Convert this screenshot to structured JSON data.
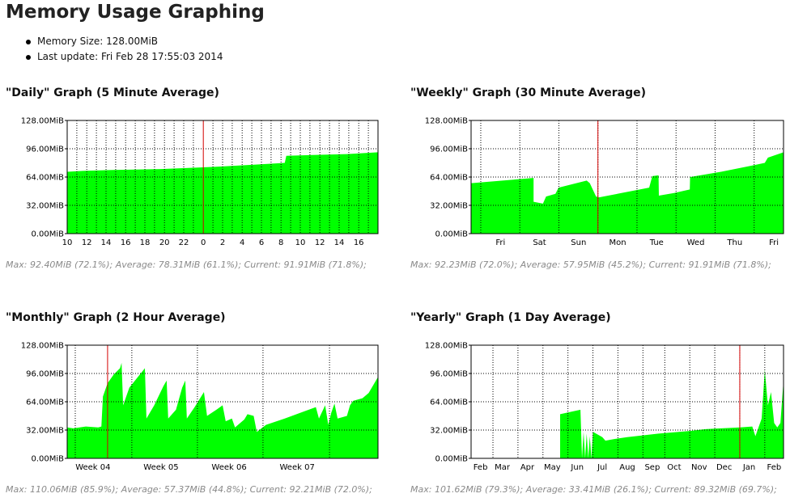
{
  "page_title": "Memory Usage Graphing",
  "info": {
    "memory_size": "Memory Size: 128.00MiB",
    "last_update": "Last update: Fri Feb 28 17:55:03 2014"
  },
  "colors": {
    "fill": "#00ff00",
    "marker": "#d40000",
    "grid": "#000000",
    "background": "#ffffff"
  },
  "chart_data": [
    {
      "type": "area",
      "title": "\"Daily\" Graph (5 Minute Average)",
      "ylim": [
        0,
        128
      ],
      "yticks": [
        "0.00MiB",
        "32.00MiB",
        "64.00MiB",
        "96.00MiB",
        "128.00MiB"
      ],
      "yvalues": [
        0,
        32,
        64,
        96,
        128
      ],
      "xlim": [
        0,
        1
      ],
      "xticks": [
        "10",
        "12",
        "14",
        "16",
        "18",
        "20",
        "22",
        "0",
        "2",
        "4",
        "6",
        "8",
        "10",
        "12",
        "14",
        "16"
      ],
      "xtick_pos": [
        0.0,
        0.063,
        0.125,
        0.188,
        0.25,
        0.313,
        0.375,
        0.438,
        0.5,
        0.563,
        0.625,
        0.688,
        0.75,
        0.813,
        0.875,
        0.938
      ],
      "grid_x": [
        0.031,
        0.063,
        0.094,
        0.125,
        0.156,
        0.188,
        0.219,
        0.25,
        0.281,
        0.313,
        0.344,
        0.375,
        0.406,
        0.469,
        0.5,
        0.531,
        0.563,
        0.594,
        0.625,
        0.656,
        0.688,
        0.719,
        0.75,
        0.781,
        0.813,
        0.844,
        0.875,
        0.906,
        0.938,
        0.969
      ],
      "marker_x": 0.438,
      "points": [
        [
          0,
          70
        ],
        [
          0.05,
          71
        ],
        [
          0.15,
          72
        ],
        [
          0.3,
          73
        ],
        [
          0.438,
          75
        ],
        [
          0.5,
          76
        ],
        [
          0.6,
          78
        ],
        [
          0.7,
          80
        ],
        [
          0.705,
          88
        ],
        [
          0.8,
          89
        ],
        [
          0.9,
          90
        ],
        [
          1.0,
          92
        ]
      ],
      "stats": "Max: 92.40MiB (72.1%); Average: 78.31MiB (61.1%); Current: 91.91MiB (71.8%);"
    },
    {
      "type": "area",
      "title": "\"Weekly\" Graph (30 Minute Average)",
      "ylim": [
        0,
        128
      ],
      "yticks": [
        "0.00MiB",
        "32.00MiB",
        "64.00MiB",
        "96.00MiB",
        "128.00MiB"
      ],
      "yvalues": [
        0,
        32,
        64,
        96,
        128
      ],
      "xlim": [
        0,
        1
      ],
      "xticks": [
        "Fri",
        "Sat",
        "Sun",
        "Mon",
        "Tue",
        "Wed",
        "Thu",
        "Fri"
      ],
      "xtick_pos": [
        0.094,
        0.219,
        0.344,
        0.469,
        0.594,
        0.719,
        0.844,
        0.969
      ],
      "grid_x": [
        0.031,
        0.156,
        0.281,
        0.406,
        0.531,
        0.656,
        0.781,
        0.906
      ],
      "marker_x": 0.406,
      "points": [
        [
          0,
          57
        ],
        [
          0.2,
          63
        ],
        [
          0.2,
          36
        ],
        [
          0.23,
          34
        ],
        [
          0.24,
          42
        ],
        [
          0.27,
          45
        ],
        [
          0.28,
          52
        ],
        [
          0.37,
          60
        ],
        [
          0.38,
          57
        ],
        [
          0.4,
          42
        ],
        [
          0.41,
          41
        ],
        [
          0.57,
          52
        ],
        [
          0.58,
          65
        ],
        [
          0.6,
          66
        ],
        [
          0.601,
          43
        ],
        [
          0.65,
          46
        ],
        [
          0.7,
          50
        ],
        [
          0.701,
          64
        ],
        [
          0.8,
          70
        ],
        [
          0.9,
          77
        ],
        [
          0.94,
          80
        ],
        [
          0.95,
          86
        ],
        [
          1.0,
          92
        ]
      ],
      "stats": "Max: 92.23MiB (72.0%); Average: 57.95MiB (45.2%); Current: 91.91MiB (71.8%);"
    },
    {
      "type": "area",
      "title": "\"Monthly\" Graph (2 Hour Average)",
      "ylim": [
        0,
        128
      ],
      "yticks": [
        "0.00MiB",
        "32.00MiB",
        "64.00MiB",
        "96.00MiB",
        "128.00MiB"
      ],
      "yvalues": [
        0,
        32,
        64,
        96,
        128
      ],
      "xlim": [
        0,
        1
      ],
      "xticks": [
        "Week 04",
        "Week 05",
        "Week 06",
        "Week 07"
      ],
      "xtick_pos": [
        0.083,
        0.302,
        0.521,
        0.74
      ],
      "grid_x": [
        0.026,
        0.208,
        0.419,
        0.63,
        0.844
      ],
      "marker_x": 0.13,
      "points": [
        [
          0,
          35
        ],
        [
          0.02,
          34
        ],
        [
          0.06,
          36
        ],
        [
          0.1,
          35
        ],
        [
          0.11,
          36
        ],
        [
          0.115,
          70
        ],
        [
          0.13,
          85
        ],
        [
          0.15,
          95
        ],
        [
          0.17,
          102
        ],
        [
          0.175,
          108
        ],
        [
          0.18,
          60
        ],
        [
          0.2,
          80
        ],
        [
          0.25,
          102
        ],
        [
          0.255,
          45
        ],
        [
          0.28,
          60
        ],
        [
          0.31,
          82
        ],
        [
          0.32,
          88
        ],
        [
          0.325,
          45
        ],
        [
          0.35,
          55
        ],
        [
          0.37,
          80
        ],
        [
          0.38,
          88
        ],
        [
          0.385,
          45
        ],
        [
          0.41,
          58
        ],
        [
          0.44,
          75
        ],
        [
          0.45,
          48
        ],
        [
          0.48,
          55
        ],
        [
          0.5,
          60
        ],
        [
          0.51,
          42
        ],
        [
          0.53,
          45
        ],
        [
          0.54,
          35
        ],
        [
          0.57,
          44
        ],
        [
          0.58,
          50
        ],
        [
          0.6,
          48
        ],
        [
          0.61,
          30
        ],
        [
          0.64,
          38
        ],
        [
          0.7,
          45
        ],
        [
          0.8,
          58
        ],
        [
          0.81,
          45
        ],
        [
          0.83,
          60
        ],
        [
          0.84,
          38
        ],
        [
          0.85,
          52
        ],
        [
          0.86,
          62
        ],
        [
          0.87,
          45
        ],
        [
          0.9,
          48
        ],
        [
          0.91,
          60
        ],
        [
          0.92,
          65
        ],
        [
          0.95,
          68
        ],
        [
          0.97,
          74
        ],
        [
          1.0,
          92
        ]
      ],
      "stats": "Max: 110.06MiB (85.9%); Average: 57.37MiB (44.8%); Current: 92.21MiB (72.0%);"
    },
    {
      "type": "area",
      "title": "\"Yearly\" Graph (1 Day Average)",
      "ylim": [
        0,
        128
      ],
      "yticks": [
        "0.00MiB",
        "32.00MiB",
        "64.00MiB",
        "96.00MiB",
        "128.00MiB"
      ],
      "yvalues": [
        0,
        32,
        64,
        96,
        128
      ],
      "xlim": [
        0,
        1
      ],
      "xticks": [
        "Feb",
        "Mar",
        "Apr",
        "May",
        "Jun",
        "Jul",
        "Aug",
        "Sep",
        "Oct",
        "Nov",
        "Dec",
        "Jan",
        "Feb"
      ],
      "xtick_pos": [
        0.03,
        0.1,
        0.18,
        0.26,
        0.34,
        0.42,
        0.5,
        0.58,
        0.65,
        0.73,
        0.81,
        0.89,
        0.97
      ],
      "grid_x": [
        0.07,
        0.15,
        0.23,
        0.31,
        0.39,
        0.47,
        0.55,
        0.62,
        0.7,
        0.78,
        0.86,
        0.94
      ],
      "marker_x": 0.86,
      "points": [
        [
          0,
          0
        ],
        [
          0.285,
          0
        ],
        [
          0.285,
          50
        ],
        [
          0.35,
          55
        ],
        [
          0.355,
          0
        ],
        [
          0.36,
          30
        ],
        [
          0.365,
          0
        ],
        [
          0.37,
          28
        ],
        [
          0.375,
          0
        ],
        [
          0.38,
          25
        ],
        [
          0.385,
          0
        ],
        [
          0.39,
          30
        ],
        [
          0.4,
          28
        ],
        [
          0.42,
          24
        ],
        [
          0.43,
          20
        ],
        [
          0.46,
          22
        ],
        [
          0.5,
          24
        ],
        [
          0.6,
          28
        ],
        [
          0.7,
          31
        ],
        [
          0.75,
          33
        ],
        [
          0.8,
          34
        ],
        [
          0.86,
          35
        ],
        [
          0.9,
          36
        ],
        [
          0.91,
          25
        ],
        [
          0.93,
          45
        ],
        [
          0.94,
          100
        ],
        [
          0.95,
          60
        ],
        [
          0.96,
          75
        ],
        [
          0.97,
          40
        ],
        [
          0.98,
          35
        ],
        [
          0.99,
          40
        ],
        [
          1.0,
          88
        ]
      ],
      "stats": "Max: 101.62MiB (79.3%); Average: 33.41MiB (26.1%); Current: 89.32MiB (69.7%);"
    }
  ]
}
